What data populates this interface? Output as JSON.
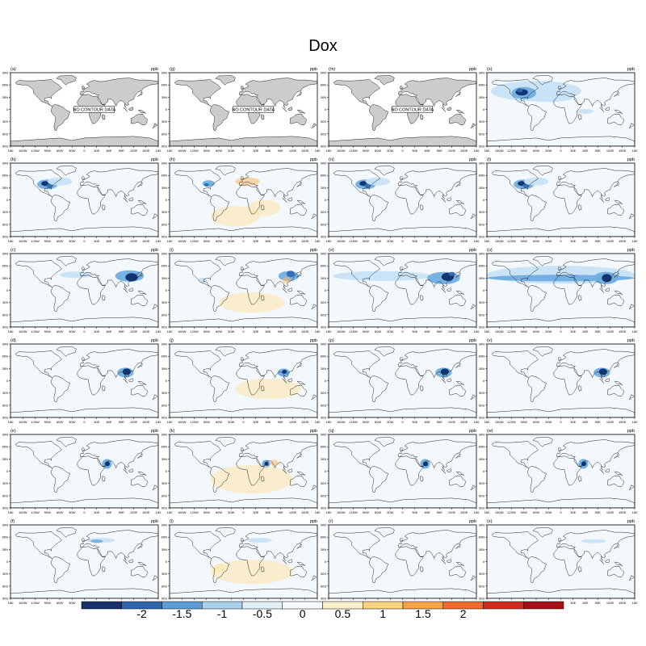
{
  "title": "Dox",
  "unit": "ppb",
  "lat_ticks": [
    "90N",
    "60N",
    "30N",
    "0",
    "30S",
    "60S",
    "90S"
  ],
  "lon_ticks": [
    "180",
    "150W",
    "120W",
    "90W",
    "60W",
    "30W",
    "0",
    "30E",
    "60E",
    "90E",
    "120E",
    "150E",
    "180"
  ],
  "no_data_text": "NO CONTOUR DATA",
  "colors": {
    "ocean_light": "#f3f8fc",
    "land_gray": "#cccccc",
    "levels": [
      "#0b2e6b",
      "#2f6db4",
      "#6faee0",
      "#c7e2f5",
      "#f7fbff",
      "#ffffff",
      "#fde3a6",
      "#fdb863",
      "#f0803c",
      "#d73a2a",
      "#a50f15"
    ]
  },
  "colorbar": {
    "labels": [
      "-2",
      "-1.5",
      "-1",
      "-0.5",
      "0",
      "0.5",
      "1",
      "1.5",
      "2"
    ],
    "colors": [
      "#17306b",
      "#2d65ad",
      "#5a9dd7",
      "#a8d1ee",
      "#e2f0fa",
      "#f7fbff",
      "#fdf0c8",
      "#fdd27f",
      "#f9a348",
      "#ef6a2c",
      "#cf2c1d",
      "#a50f15"
    ]
  },
  "panels": [
    {
      "label": "(a)",
      "type": "nodata"
    },
    {
      "label": "(g)",
      "type": "nodata"
    },
    {
      "label": "(m)",
      "type": "nodata"
    },
    {
      "label": "(s)",
      "type": "usa_wide"
    },
    {
      "label": "(b)",
      "type": "usa_small"
    },
    {
      "label": "(h)",
      "type": "usa_small_warm"
    },
    {
      "label": "(n)",
      "type": "usa_small"
    },
    {
      "label": "(t)",
      "type": "usa_small"
    },
    {
      "label": "(c)",
      "type": "china"
    },
    {
      "label": "(i)",
      "type": "china_warm"
    },
    {
      "label": "(o)",
      "type": "china_band"
    },
    {
      "label": "(u)",
      "type": "china_wide"
    },
    {
      "label": "(d)",
      "type": "seasia"
    },
    {
      "label": "(j)",
      "type": "seasia_warm"
    },
    {
      "label": "(p)",
      "type": "seasia"
    },
    {
      "label": "(v)",
      "type": "seasia"
    },
    {
      "label": "(e)",
      "type": "india"
    },
    {
      "label": "(k)",
      "type": "india_warm"
    },
    {
      "label": "(q)",
      "type": "india"
    },
    {
      "label": "(w)",
      "type": "india"
    },
    {
      "label": "(f)",
      "type": "russia"
    },
    {
      "label": "(l)",
      "type": "russia_warm"
    },
    {
      "label": "(r)",
      "type": "faint"
    },
    {
      "label": "(x)",
      "type": "russia_small"
    }
  ]
}
